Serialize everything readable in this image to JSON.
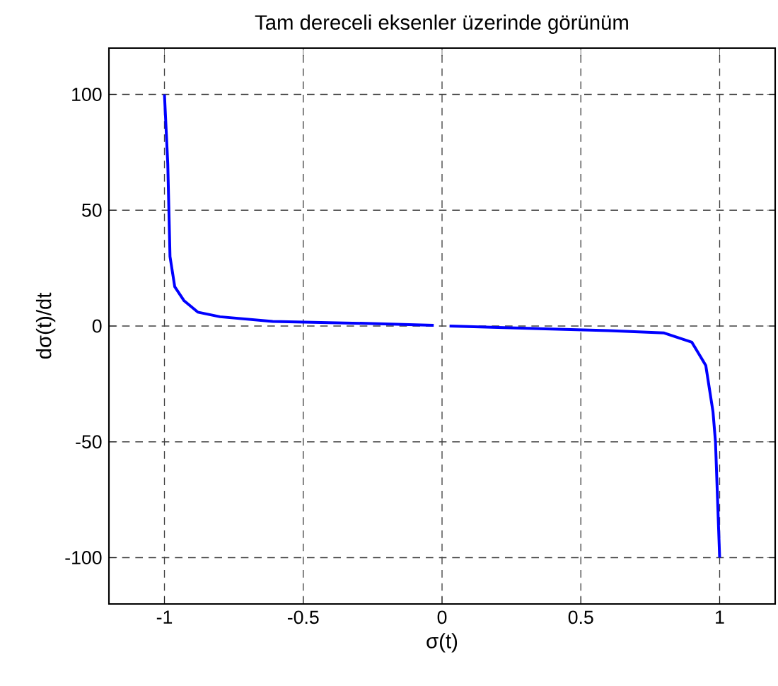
{
  "chart_data": {
    "type": "line",
    "title": "Tam dereceli eksenler üzerinde görünüm",
    "xlabel": "σ(t)",
    "ylabel": "dσ(t)/dt",
    "xlim": [
      -1.2,
      1.2
    ],
    "ylim": [
      -120,
      120
    ],
    "xticks": [
      -1,
      -0.5,
      0,
      0.5,
      1
    ],
    "yticks": [
      -100,
      -50,
      0,
      50,
      100
    ],
    "grid": true,
    "marker": "none",
    "line_style": "solid",
    "series": [
      {
        "color": "#0000ff",
        "x": [
          -1.0,
          -0.988,
          -0.98,
          -0.963,
          -0.93,
          -0.88,
          -0.8,
          -0.61,
          -0.23,
          -0.03,
          null,
          0.027,
          0.6,
          0.8,
          0.9,
          0.95,
          0.976,
          0.985,
          1.0
        ],
        "values": [
          100,
          70,
          30,
          17,
          11,
          6,
          4,
          2,
          1,
          0.3,
          null,
          0,
          -2,
          -3,
          -7,
          -17,
          -37,
          -50,
          -100
        ]
      }
    ]
  }
}
